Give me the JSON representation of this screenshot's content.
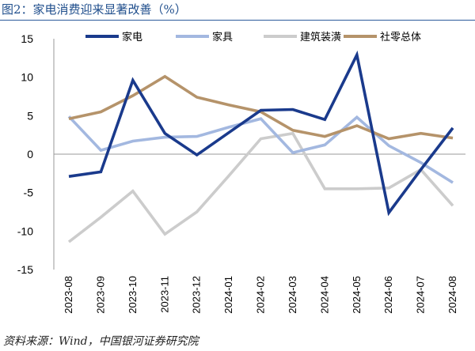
{
  "title": "图2：家电消费迎来显著改善（%）",
  "source": "资料来源：Wind，中国银河证券研究院",
  "chart_data": {
    "type": "line",
    "x": [
      "2023-08",
      "2023-09",
      "2023-10",
      "2023-11",
      "2023-12",
      "2024-01",
      "2024-02",
      "2024-03",
      "2024-04",
      "2024-05",
      "2024-06",
      "2024-07",
      "2024-08"
    ],
    "ylim": [
      -15,
      15
    ],
    "yticks": [
      15,
      10,
      5,
      0,
      -5,
      -10,
      -15
    ],
    "ytick_labels": [
      "15",
      "10",
      "5",
      "0",
      "-5",
      "-10",
      "-15"
    ],
    "legend_position": "top",
    "grid": false,
    "series": [
      {
        "name": "家电",
        "color": "#1a3a8c",
        "values": [
          -2.9,
          -2.3,
          9.6,
          2.7,
          -0.1,
          2.8,
          5.7,
          5.8,
          4.5,
          12.9,
          -7.6,
          -2.0,
          3.4
        ]
      },
      {
        "name": "家具",
        "color": "#a3b8e0",
        "values": [
          4.9,
          0.5,
          1.7,
          2.2,
          2.3,
          3.5,
          4.6,
          0.2,
          1.2,
          4.8,
          1.1,
          -1.1,
          -3.7
        ]
      },
      {
        "name": "建筑装潢",
        "color": "#cccccc",
        "values": [
          -11.4,
          -8.2,
          -4.8,
          -10.4,
          -7.5,
          -2.8,
          2.0,
          2.7,
          -4.5,
          -4.5,
          -4.4,
          -2.0,
          -6.7
        ]
      },
      {
        "name": "社零总体",
        "color": "#b5936a",
        "values": [
          4.6,
          5.5,
          7.6,
          10.1,
          7.4,
          6.4,
          5.5,
          3.1,
          2.3,
          3.7,
          2.0,
          2.7,
          2.1
        ]
      }
    ]
  }
}
